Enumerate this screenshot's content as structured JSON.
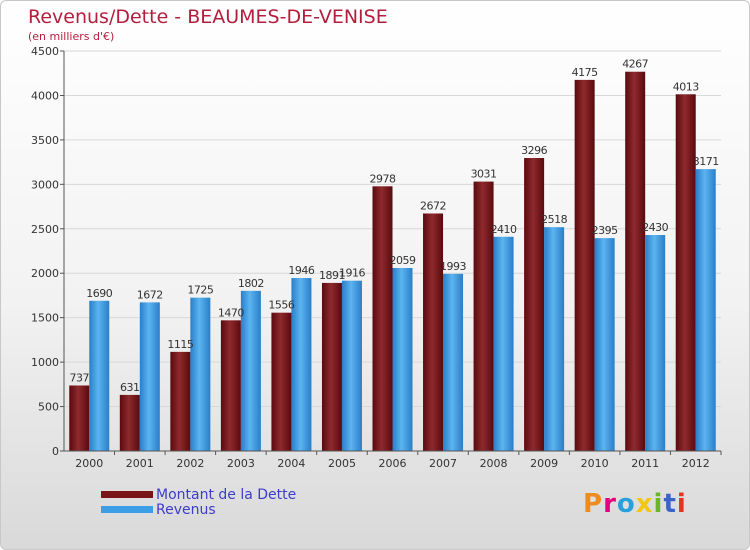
{
  "title": "Revenus/Dette - BEAUMES-DE-VENISE",
  "subtitle": "(en milliers d'€)",
  "logo": {
    "text": "Proxiti",
    "colors": [
      "#f08c1e",
      "#e6007e",
      "#28a0dc",
      "#f0c814",
      "#6cb42c",
      "#3c64c8",
      "#e6321e"
    ]
  },
  "colors": {
    "debt": "#7a1418",
    "revenue": "#3c9ee6",
    "axis": "#555555",
    "text": "#333333"
  },
  "chart_data": {
    "type": "bar",
    "categories": [
      "2000",
      "2001",
      "2002",
      "2003",
      "2004",
      "2005",
      "2006",
      "2007",
      "2008",
      "2009",
      "2010",
      "2011",
      "2012"
    ],
    "series": [
      {
        "name": "Montant de la Dette",
        "values": [
          737,
          631,
          1115,
          1470,
          1556,
          1891,
          2978,
          2672,
          3031,
          3296,
          4175,
          4267,
          4013
        ]
      },
      {
        "name": "Revenus",
        "values": [
          1690,
          1672,
          1725,
          1802,
          1946,
          1916,
          2059,
          1993,
          2410,
          2518,
          2395,
          2430,
          3171
        ]
      }
    ],
    "yticks": [
      0,
      500,
      1000,
      1500,
      2000,
      2500,
      3000,
      3500,
      4000,
      4500
    ],
    "ylim": [
      0,
      4500
    ],
    "legend": "bottom-left"
  }
}
